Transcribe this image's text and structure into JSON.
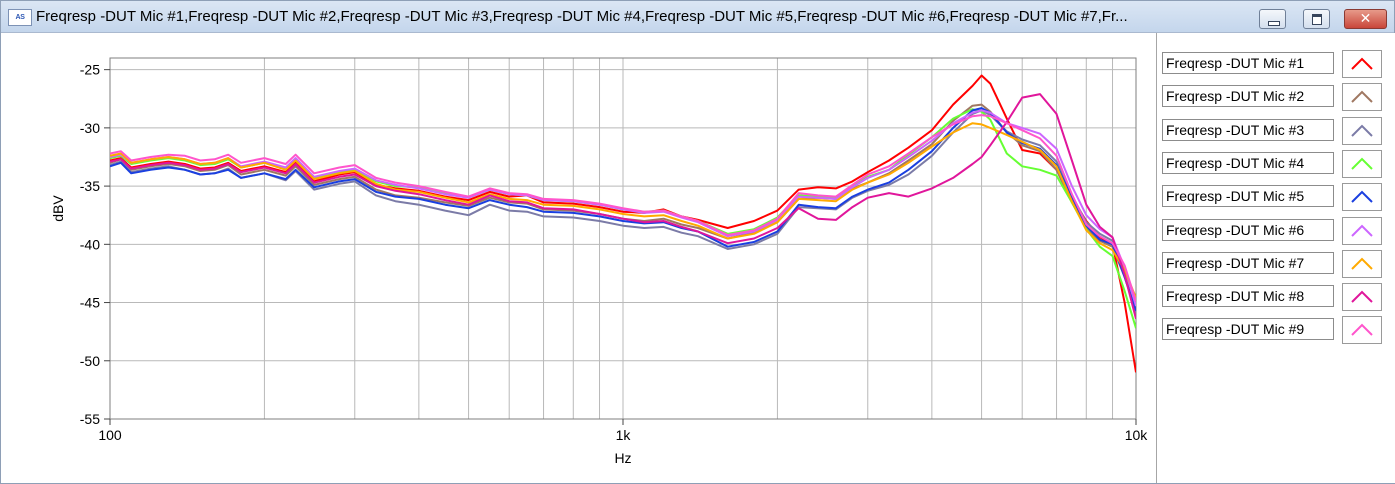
{
  "window": {
    "title": "Freqresp -DUT Mic #1,Freqresp -DUT Mic #2,Freqresp -DUT Mic #3,Freqresp -DUT Mic #4,Freqresp -DUT Mic #5,Freqresp -DUT Mic #6,Freqresp -DUT Mic #7,Fr...",
    "app_icon_text": "AS",
    "icons": [
      "app-icon",
      "minimize-icon",
      "maximize-icon",
      "close-icon"
    ]
  },
  "chart_data": {
    "type": "line",
    "xlabel": "Hz",
    "ylabel": "dBV",
    "xscale": "log",
    "xlim": [
      100,
      10000
    ],
    "ylim": [
      -55,
      -24
    ],
    "grid": true,
    "legend_position": "right",
    "xticks": [
      {
        "value": 100,
        "label": "100"
      },
      {
        "value": 1000,
        "label": "1k"
      },
      {
        "value": 10000,
        "label": "10k"
      }
    ],
    "yticks": [
      {
        "value": -25,
        "label": "-25"
      },
      {
        "value": -30,
        "label": "-30"
      },
      {
        "value": -35,
        "label": "-35"
      },
      {
        "value": -40,
        "label": "-40"
      },
      {
        "value": -45,
        "label": "-45"
      },
      {
        "value": -50,
        "label": "-50"
      },
      {
        "value": -55,
        "label": "-55"
      }
    ],
    "x": [
      100,
      105,
      110,
      120,
      130,
      140,
      150,
      160,
      170,
      180,
      200,
      220,
      230,
      250,
      280,
      300,
      330,
      360,
      400,
      450,
      500,
      550,
      600,
      650,
      700,
      800,
      900,
      1000,
      1100,
      1200,
      1300,
      1400,
      1600,
      1800,
      2000,
      2200,
      2400,
      2600,
      2800,
      3000,
      3300,
      3600,
      4000,
      4400,
      4800,
      5000,
      5200,
      5600,
      6000,
      6500,
      7000,
      7500,
      8000,
      8500,
      9000,
      9500,
      10000
    ],
    "series": [
      {
        "name": "Freqresp -DUT Mic #1",
        "color": "#ff0000",
        "values": [
          -32.8,
          -32.6,
          -33.4,
          -33.1,
          -32.9,
          -33.1,
          -33.5,
          -33.4,
          -33.0,
          -33.7,
          -33.3,
          -33.8,
          -33.0,
          -34.6,
          -34.0,
          -33.8,
          -34.9,
          -35.2,
          -35.4,
          -35.9,
          -36.2,
          -35.5,
          -35.9,
          -35.8,
          -36.4,
          -36.5,
          -36.8,
          -37.2,
          -37.3,
          -37.0,
          -37.6,
          -37.9,
          -38.6,
          -38.0,
          -37.1,
          -35.3,
          -35.1,
          -35.2,
          -34.6,
          -33.8,
          -32.8,
          -31.7,
          -30.2,
          -28.0,
          -26.4,
          -25.5,
          -26.2,
          -29.2,
          -31.9,
          -32.2,
          -33.6,
          -36.0,
          -38.0,
          -39.4,
          -40.0,
          -45.0,
          -51.0
        ]
      },
      {
        "name": "Freqresp -DUT Mic #2",
        "color": "#a07862",
        "values": [
          -33.0,
          -32.7,
          -33.6,
          -33.3,
          -33.1,
          -33.3,
          -33.7,
          -33.6,
          -33.2,
          -34.0,
          -33.6,
          -34.1,
          -33.3,
          -34.9,
          -34.4,
          -34.2,
          -35.3,
          -35.8,
          -36.0,
          -36.4,
          -36.7,
          -36.0,
          -36.4,
          -36.5,
          -37.0,
          -37.1,
          -37.4,
          -37.8,
          -38.0,
          -37.8,
          -38.3,
          -38.6,
          -39.5,
          -39.0,
          -38.1,
          -36.1,
          -36.0,
          -36.1,
          -35.2,
          -34.7,
          -33.9,
          -32.8,
          -31.4,
          -29.4,
          -28.1,
          -28.0,
          -28.6,
          -30.4,
          -31.5,
          -32.0,
          -33.6,
          -36.4,
          -38.6,
          -39.7,
          -40.2,
          -42.8,
          -45.8
        ]
      },
      {
        "name": "Freqresp -DUT Mic #3",
        "color": "#7b7ba7",
        "values": [
          -33.2,
          -32.9,
          -33.8,
          -33.5,
          -33.3,
          -33.6,
          -34.0,
          -33.9,
          -33.5,
          -34.3,
          -33.9,
          -34.5,
          -33.7,
          -35.3,
          -34.8,
          -34.6,
          -35.8,
          -36.3,
          -36.6,
          -37.1,
          -37.5,
          -36.6,
          -37.1,
          -37.2,
          -37.6,
          -37.7,
          -38.0,
          -38.4,
          -38.6,
          -38.5,
          -39.0,
          -39.3,
          -40.4,
          -40.0,
          -39.1,
          -36.8,
          -36.9,
          -37.0,
          -36.0,
          -35.4,
          -34.9,
          -34.0,
          -32.4,
          -30.4,
          -28.8,
          -28.5,
          -28.9,
          -30.3,
          -31.0,
          -31.5,
          -32.9,
          -35.8,
          -38.1,
          -39.1,
          -39.7,
          -42.5,
          -46.0
        ]
      },
      {
        "name": "Freqresp -DUT Mic #4",
        "color": "#66ff33",
        "values": [
          -32.6,
          -32.4,
          -33.1,
          -32.8,
          -32.6,
          -32.8,
          -33.2,
          -33.1,
          -32.7,
          -33.4,
          -33.0,
          -33.5,
          -32.7,
          -34.3,
          -33.8,
          -33.6,
          -34.6,
          -35.0,
          -35.1,
          -35.6,
          -36.0,
          -35.3,
          -35.7,
          -35.8,
          -36.2,
          -36.3,
          -36.6,
          -37.0,
          -37.2,
          -37.1,
          -37.6,
          -38.0,
          -39.1,
          -38.7,
          -37.7,
          -35.8,
          -35.9,
          -36.0,
          -35.0,
          -34.2,
          -33.6,
          -32.3,
          -30.8,
          -29.2,
          -28.4,
          -28.6,
          -29.3,
          -32.2,
          -33.3,
          -33.6,
          -34.1,
          -36.4,
          -38.7,
          -40.2,
          -41.0,
          -44.0,
          -47.2
        ]
      },
      {
        "name": "Freqresp -DUT Mic #5",
        "color": "#1a3fe0",
        "values": [
          -33.3,
          -33.0,
          -33.9,
          -33.6,
          -33.4,
          -33.6,
          -34.0,
          -33.9,
          -33.6,
          -34.3,
          -33.9,
          -34.4,
          -33.6,
          -35.1,
          -34.6,
          -34.4,
          -35.5,
          -35.9,
          -36.1,
          -36.6,
          -36.9,
          -36.2,
          -36.6,
          -36.8,
          -37.2,
          -37.3,
          -37.6,
          -38.0,
          -38.2,
          -38.1,
          -38.6,
          -38.9,
          -40.2,
          -39.8,
          -38.9,
          -36.6,
          -36.8,
          -36.9,
          -35.9,
          -35.3,
          -34.7,
          -33.6,
          -32.0,
          -30.0,
          -28.5,
          -28.3,
          -28.7,
          -30.4,
          -31.3,
          -31.8,
          -33.2,
          -36.0,
          -38.4,
          -39.6,
          -40.0,
          -42.8,
          -45.7
        ]
      },
      {
        "name": "Freqresp -DUT Mic #6",
        "color": "#cc66ff",
        "values": [
          -32.5,
          -32.3,
          -33.0,
          -32.7,
          -32.5,
          -32.7,
          -33.1,
          -33.0,
          -32.6,
          -33.3,
          -32.9,
          -33.4,
          -32.6,
          -34.2,
          -33.7,
          -33.5,
          -34.5,
          -34.9,
          -35.2,
          -35.7,
          -36.0,
          -35.3,
          -35.7,
          -35.8,
          -36.2,
          -36.3,
          -36.6,
          -37.0,
          -37.3,
          -37.2,
          -37.7,
          -38.1,
          -39.3,
          -38.9,
          -37.9,
          -35.9,
          -36.0,
          -36.1,
          -35.1,
          -34.3,
          -33.6,
          -32.5,
          -31.1,
          -29.6,
          -28.7,
          -28.5,
          -28.7,
          -29.6,
          -30.0,
          -30.5,
          -31.8,
          -35.0,
          -37.5,
          -38.7,
          -39.4,
          -42.0,
          -45.3
        ]
      },
      {
        "name": "Freqresp -DUT Mic #7",
        "color": "#ffaa00",
        "values": [
          -32.4,
          -32.2,
          -33.0,
          -32.7,
          -32.5,
          -32.7,
          -33.1,
          -33.0,
          -32.6,
          -33.4,
          -33.0,
          -33.6,
          -32.8,
          -34.4,
          -33.9,
          -33.7,
          -34.8,
          -35.3,
          -35.5,
          -36.0,
          -36.4,
          -35.7,
          -36.1,
          -36.2,
          -36.6,
          -36.7,
          -37.0,
          -37.4,
          -37.6,
          -37.5,
          -38.0,
          -38.4,
          -39.5,
          -39.1,
          -38.1,
          -36.1,
          -36.2,
          -36.3,
          -35.3,
          -34.7,
          -34.0,
          -33.0,
          -31.6,
          -30.4,
          -29.6,
          -29.7,
          -30.0,
          -30.6,
          -31.2,
          -31.9,
          -33.3,
          -36.3,
          -38.8,
          -39.9,
          -40.5,
          -42.2,
          -44.6
        ]
      },
      {
        "name": "Freqresp -DUT Mic #8",
        "color": "#e0169b",
        "values": [
          -32.9,
          -32.7,
          -33.5,
          -33.2,
          -33.0,
          -33.2,
          -33.6,
          -33.5,
          -33.1,
          -33.8,
          -33.4,
          -33.9,
          -33.1,
          -34.7,
          -34.2,
          -34.0,
          -35.0,
          -35.4,
          -35.7,
          -36.2,
          -36.6,
          -35.8,
          -36.3,
          -36.4,
          -36.9,
          -37.0,
          -37.4,
          -37.8,
          -38.1,
          -38.0,
          -38.5,
          -38.9,
          -39.9,
          -39.5,
          -38.6,
          -36.9,
          -37.8,
          -37.9,
          -36.8,
          -36.0,
          -35.6,
          -35.9,
          -35.2,
          -34.3,
          -33.1,
          -32.5,
          -31.5,
          -29.5,
          -27.4,
          -27.1,
          -28.8,
          -32.8,
          -36.6,
          -38.5,
          -39.4,
          -42.6,
          -46.4
        ]
      },
      {
        "name": "Freqresp -DUT Mic #9",
        "color": "#ff55cc",
        "values": [
          -32.2,
          -32.0,
          -32.8,
          -32.5,
          -32.3,
          -32.4,
          -32.8,
          -32.7,
          -32.3,
          -33.0,
          -32.6,
          -33.1,
          -32.3,
          -33.9,
          -33.4,
          -33.2,
          -34.3,
          -34.7,
          -35.0,
          -35.5,
          -35.9,
          -35.2,
          -35.6,
          -35.7,
          -36.1,
          -36.2,
          -36.5,
          -36.9,
          -37.2,
          -37.1,
          -37.6,
          -38.0,
          -39.2,
          -38.8,
          -37.8,
          -35.6,
          -35.8,
          -35.9,
          -34.9,
          -34.0,
          -33.3,
          -32.2,
          -30.8,
          -29.7,
          -29.0,
          -28.9,
          -29.0,
          -29.6,
          -30.2,
          -30.9,
          -32.4,
          -35.7,
          -38.3,
          -39.3,
          -39.9,
          -41.8,
          -44.9
        ]
      }
    ]
  }
}
